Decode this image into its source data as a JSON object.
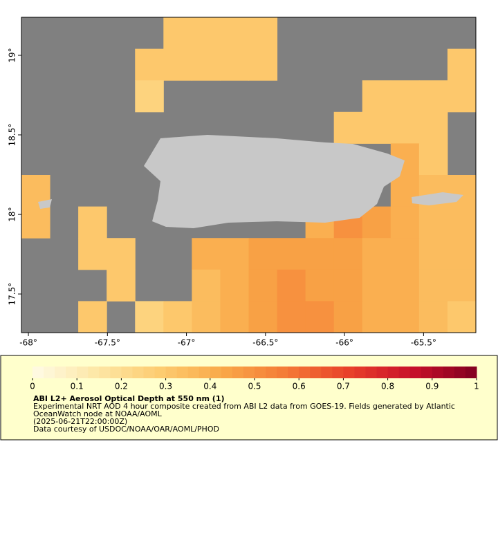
{
  "chart_data": {
    "type": "heatmap",
    "xlim": [
      -68.044,
      -65.169
    ],
    "ylim": [
      17.257,
      19.239
    ],
    "xticks": [
      {
        "value": -68,
        "label": "-68°"
      },
      {
        "value": -67.5,
        "label": "-67.5°"
      },
      {
        "value": -67,
        "label": "-67°"
      },
      {
        "value": -66.5,
        "label": "-66.5°"
      },
      {
        "value": -66,
        "label": "-66°"
      },
      {
        "value": -65.5,
        "label": "-65.5°"
      }
    ],
    "yticks": [
      {
        "value": 19,
        "label": "19°"
      },
      {
        "value": 18.5,
        "label": "18.5°"
      },
      {
        "value": 18,
        "label": "18°"
      },
      {
        "value": 17.5,
        "label": "17.5°"
      }
    ],
    "no_data_color": "#808080",
    "values": [
      [
        null,
        null,
        null,
        null,
        null,
        0.3,
        0.3,
        0.3,
        0.3,
        null,
        null,
        null,
        null,
        null,
        null,
        null
      ],
      [
        null,
        null,
        null,
        null,
        0.3,
        0.3,
        0.3,
        0.3,
        0.3,
        null,
        null,
        null,
        null,
        null,
        null,
        0.3
      ],
      [
        null,
        null,
        null,
        null,
        0.25,
        null,
        null,
        null,
        null,
        null,
        null,
        null,
        0.3,
        0.3,
        0.3,
        0.3
      ],
      [
        null,
        null,
        null,
        null,
        null,
        null,
        null,
        null,
        null,
        null,
        null,
        0.3,
        0.3,
        0.3,
        0.3,
        null
      ],
      [
        null,
        null,
        null,
        null,
        null,
        null,
        null,
        null,
        null,
        null,
        null,
        null,
        null,
        0.4,
        0.3,
        null
      ],
      [
        0.35,
        null,
        null,
        null,
        null,
        null,
        null,
        null,
        null,
        null,
        null,
        null,
        null,
        0.4,
        0.35,
        0.35
      ],
      [
        0.35,
        null,
        0.3,
        null,
        null,
        null,
        null,
        null,
        null,
        null,
        0.4,
        0.5,
        0.45,
        0.4,
        0.35,
        0.35
      ],
      [
        null,
        null,
        0.3,
        0.3,
        null,
        null,
        0.4,
        0.4,
        0.45,
        0.45,
        0.45,
        0.45,
        0.4,
        0.4,
        0.35,
        0.35
      ],
      [
        null,
        null,
        null,
        0.3,
        null,
        null,
        0.35,
        0.4,
        0.45,
        0.5,
        0.45,
        0.45,
        0.4,
        0.4,
        0.35,
        0.35
      ],
      [
        null,
        null,
        0.3,
        null,
        0.25,
        0.3,
        0.35,
        0.4,
        0.45,
        0.5,
        0.5,
        0.45,
        0.4,
        0.4,
        0.35,
        0.3
      ]
    ],
    "colorbar": {
      "lim": [
        0,
        1
      ],
      "ticks": [
        0,
        0.1,
        0.2,
        0.3,
        0.4,
        0.5,
        0.6,
        0.7,
        0.8,
        0.9,
        1
      ],
      "colors": [
        "#fffbe6",
        "#fde7a6",
        "#fdcc70",
        "#f9a848",
        "#f47a36",
        "#e8402a",
        "#c8102a",
        "#800020"
      ]
    },
    "legend": {
      "title": "ABI L2+ Aerosol Optical Depth at 550 nm (1)",
      "lines": [
        "Experimental NRT AOD 4 hour composite created from ABI L2 data from GOES-19. Fields generated by Atlantic",
        "OceanWatch node at NOAA/AOML",
        "(2025-06-21T22:00:00Z)",
        "Data courtesy of USDOC/NOAA/OAR/AOML/PHOD"
      ]
    }
  }
}
